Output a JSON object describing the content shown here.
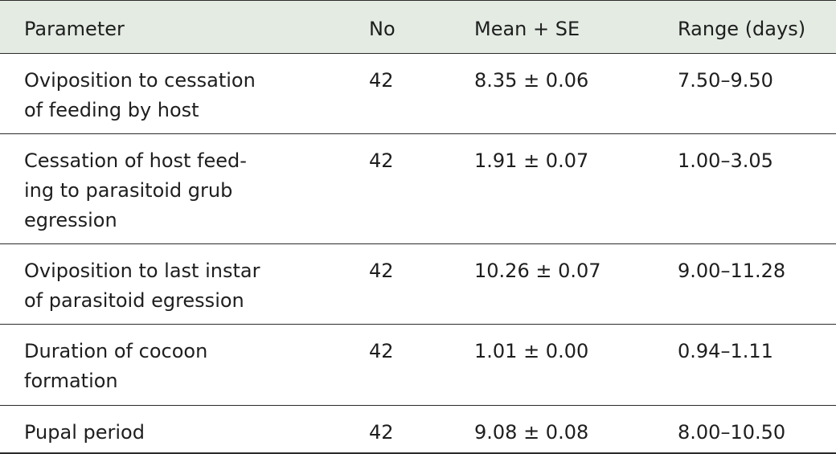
{
  "table": {
    "headers": [
      "Parameter",
      "No",
      "Mean + SE",
      "Range (days)"
    ],
    "rows": [
      {
        "parameter_lines": [
          "Oviposition to cessation",
          "of feeding by host"
        ],
        "no": "42",
        "mean_se": "8.35 ± 0.06",
        "range": "7.50–9.50"
      },
      {
        "parameter_lines": [
          "Cessation of host feed-",
          "ing to parasitoid grub",
          "egression"
        ],
        "no": "42",
        "mean_se": "1.91 ± 0.07",
        "range": "1.00–3.05"
      },
      {
        "parameter_lines": [
          "Oviposition to last instar",
          "of parasitoid egression"
        ],
        "no": "42",
        "mean_se": "10.26 ± 0.07",
        "range": "9.00–11.28"
      },
      {
        "parameter_lines": [
          "Duration of cocoon",
          "formation"
        ],
        "no": "42",
        "mean_se": "1.01 ± 0.00",
        "range": "0.94–1.11"
      },
      {
        "parameter_lines": [
          "Pupal period"
        ],
        "no": "42",
        "mean_se": "9.08 ± 0.08",
        "range": "8.00–10.50"
      }
    ]
  },
  "colors": {
    "header_background": "#e3ebe3",
    "rule": "#2b2b2b",
    "text": "#1e1e1e"
  }
}
